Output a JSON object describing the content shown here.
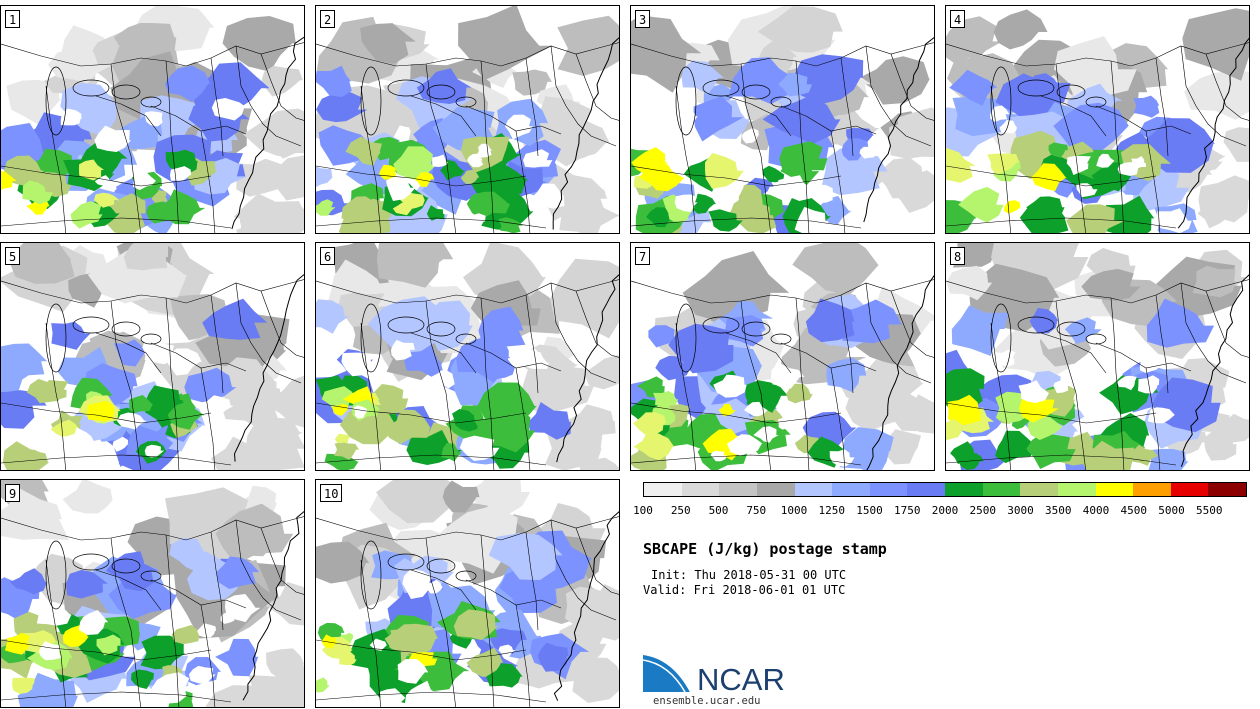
{
  "panels": [
    {
      "label": "1",
      "seed": 11
    },
    {
      "label": "2",
      "seed": 23
    },
    {
      "label": "3",
      "seed": 37
    },
    {
      "label": "4",
      "seed": 41
    },
    {
      "label": "5",
      "seed": 53
    },
    {
      "label": "6",
      "seed": 67
    },
    {
      "label": "7",
      "seed": 71
    },
    {
      "label": "8",
      "seed": 83
    },
    {
      "label": "9",
      "seed": 97
    },
    {
      "label": "10",
      "seed": 109
    }
  ],
  "colorbar": {
    "colors": [
      "#f0f0f0",
      "#dadada",
      "#c4c4c4",
      "#a8a8a8",
      "#b4c6ff",
      "#8eaaff",
      "#7b92ff",
      "#6a7cf4",
      "#0da02a",
      "#3cbd3c",
      "#b6cf78",
      "#b5f56e",
      "#ffff00",
      "#ffa000",
      "#e60000",
      "#8c0000"
    ],
    "ticks": [
      "100",
      "250",
      "500",
      "750",
      "1000",
      "1250",
      "1500",
      "1750",
      "2000",
      "2500",
      "3000",
      "3500",
      "4000",
      "4500",
      "5000",
      "5500"
    ]
  },
  "title": "SBCAPE (J/kg) postage stamp",
  "init": "Init: Thu 2018-05-31 00 UTC",
  "valid": "Valid: Fri 2018-06-01 01 UTC",
  "logo_text": "NCAR",
  "site": "ensemble.ucar.edu"
}
